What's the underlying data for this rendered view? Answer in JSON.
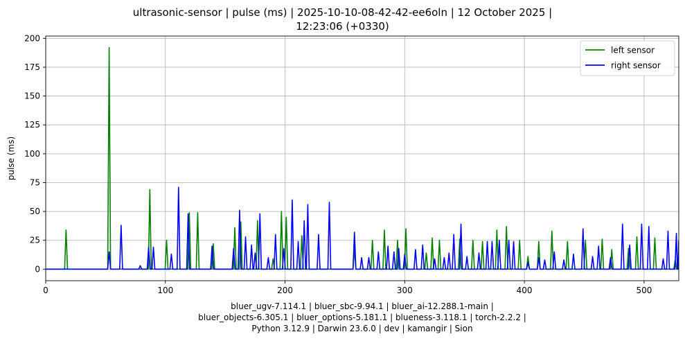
{
  "chart_data": {
    "type": "line",
    "title_lines": [
      "ultrasonic-sensor | pulse (ms) | 2025-10-10-08-42-42-ee6oln | 12 October 2025 |",
      "12:23:06 (+0330)"
    ],
    "xlabel_lines": [
      "bluer_ugv-7.114.1 | bluer_sbc-9.94.1 | bluer_ai-12.288.1-main |",
      "bluer_objects-6.305.1 | bluer_options-5.181.1 | blueness-3.118.1 | torch-2.2.2 |",
      "Python 3.12.9 | Darwin 23.6.0 | dev | kamangir | Sion"
    ],
    "ylabel": "pulse (ms)",
    "xlim": [
      0,
      529
    ],
    "ylim": [
      -10,
      202
    ],
    "xticks": [
      0,
      100,
      200,
      300,
      400,
      500
    ],
    "yticks": [
      0,
      25,
      50,
      75,
      100,
      125,
      150,
      175,
      200
    ],
    "grid": true,
    "legend_position": "top-right",
    "baseline": 0,
    "series": [
      {
        "name": "left sensor",
        "color": "#008000",
        "peaks": [
          [
            17,
            34
          ],
          [
            53,
            192
          ],
          [
            87,
            69
          ],
          [
            101,
            25
          ],
          [
            120,
            49
          ],
          [
            127,
            49
          ],
          [
            140,
            22
          ],
          [
            158,
            36
          ],
          [
            163,
            41
          ],
          [
            177,
            42
          ],
          [
            190,
            9
          ],
          [
            197,
            50
          ],
          [
            201,
            45
          ],
          [
            214,
            29
          ],
          [
            258,
            17
          ],
          [
            273,
            25
          ],
          [
            283,
            34
          ],
          [
            294,
            25
          ],
          [
            301,
            35
          ],
          [
            318,
            14
          ],
          [
            323,
            27
          ],
          [
            329,
            25
          ],
          [
            346,
            26
          ],
          [
            357,
            25
          ],
          [
            365,
            24
          ],
          [
            377,
            34
          ],
          [
            385,
            37
          ],
          [
            396,
            25
          ],
          [
            403,
            11
          ],
          [
            412,
            24
          ],
          [
            423,
            33
          ],
          [
            436,
            24
          ],
          [
            451,
            25
          ],
          [
            465,
            26
          ],
          [
            473,
            17
          ],
          [
            487,
            18
          ],
          [
            494,
            28
          ],
          [
            509,
            27
          ],
          [
            526,
            8
          ]
        ]
      },
      {
        "name": "right sensor",
        "color": "#0000ff",
        "peaks": [
          [
            53,
            15
          ],
          [
            63,
            38
          ],
          [
            79,
            3
          ],
          [
            86,
            19
          ],
          [
            90,
            19
          ],
          [
            105,
            13
          ],
          [
            111,
            71
          ],
          [
            119,
            48
          ],
          [
            139,
            20
          ],
          [
            157,
            18
          ],
          [
            162,
            51
          ],
          [
            167,
            28
          ],
          [
            172,
            21
          ],
          [
            175,
            14
          ],
          [
            179,
            48
          ],
          [
            186,
            10
          ],
          [
            192,
            30
          ],
          [
            199,
            18
          ],
          [
            206,
            60
          ],
          [
            211,
            24
          ],
          [
            216,
            42
          ],
          [
            219,
            56
          ],
          [
            228,
            30
          ],
          [
            237,
            58
          ],
          [
            258,
            32
          ],
          [
            264,
            10
          ],
          [
            270,
            10
          ],
          [
            278,
            15
          ],
          [
            286,
            20
          ],
          [
            291,
            15
          ],
          [
            295,
            18
          ],
          [
            300,
            13
          ],
          [
            309,
            17
          ],
          [
            315,
            21
          ],
          [
            325,
            9
          ],
          [
            333,
            10
          ],
          [
            337,
            14
          ],
          [
            341,
            30
          ],
          [
            347,
            39
          ],
          [
            352,
            11
          ],
          [
            362,
            14
          ],
          [
            369,
            24
          ],
          [
            373,
            24
          ],
          [
            379,
            25
          ],
          [
            387,
            25
          ],
          [
            391,
            24
          ],
          [
            403,
            6
          ],
          [
            412,
            10
          ],
          [
            417,
            8
          ],
          [
            425,
            15
          ],
          [
            433,
            8
          ],
          [
            441,
            13
          ],
          [
            449,
            35
          ],
          [
            457,
            11
          ],
          [
            462,
            20
          ],
          [
            472,
            10
          ],
          [
            482,
            39
          ],
          [
            488,
            21
          ],
          [
            498,
            39
          ],
          [
            504,
            37
          ],
          [
            516,
            9
          ],
          [
            520,
            33
          ],
          [
            527,
            31
          ],
          [
            529,
            25
          ]
        ]
      }
    ]
  }
}
